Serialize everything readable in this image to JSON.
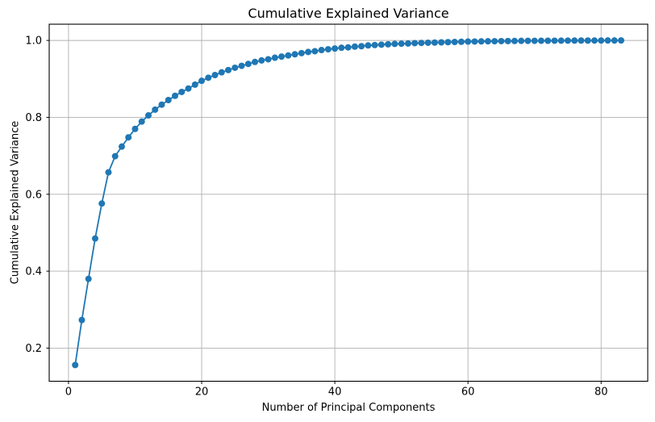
{
  "chart_data": {
    "type": "line",
    "title": "Cumulative Explained Variance",
    "xlabel": "Number of Principal Components",
    "ylabel": "Cumulative Explained Variance",
    "legend": "none",
    "grid": true,
    "line_color": "#1f77b4",
    "marker": "o",
    "marker_color": "#1f77b4",
    "grid_color": "#b0b0b0",
    "spine_color": "#000000",
    "background": "#ffffff",
    "xticks": [
      0,
      20,
      40,
      60,
      80
    ],
    "yticks": [
      0.2,
      0.4,
      0.6,
      0.8,
      1.0
    ],
    "xlim": [
      -2.9,
      87.0
    ],
    "ylim": [
      0.1138,
      1.0422
    ],
    "x": [
      1,
      2,
      3,
      4,
      5,
      6,
      7,
      8,
      9,
      10,
      11,
      12,
      13,
      14,
      15,
      16,
      17,
      18,
      19,
      20,
      21,
      22,
      23,
      24,
      25,
      26,
      27,
      28,
      29,
      30,
      31,
      32,
      33,
      34,
      35,
      36,
      37,
      38,
      39,
      40,
      41,
      42,
      43,
      44,
      45,
      46,
      47,
      48,
      49,
      50,
      51,
      52,
      53,
      54,
      55,
      56,
      57,
      58,
      59,
      60,
      61,
      62,
      63,
      64,
      65,
      66,
      67,
      68,
      69,
      70,
      71,
      72,
      73,
      74,
      75,
      76,
      77,
      78,
      79,
      80,
      81,
      82,
      83
    ],
    "values": [
      0.156,
      0.273,
      0.38,
      0.485,
      0.576,
      0.657,
      0.699,
      0.724,
      0.748,
      0.77,
      0.789,
      0.805,
      0.82,
      0.833,
      0.845,
      0.856,
      0.866,
      0.875,
      0.885,
      0.895,
      0.903,
      0.91,
      0.917,
      0.923,
      0.929,
      0.934,
      0.939,
      0.944,
      0.948,
      0.951,
      0.955,
      0.958,
      0.961,
      0.964,
      0.967,
      0.97,
      0.972,
      0.975,
      0.977,
      0.979,
      0.981,
      0.982,
      0.984,
      0.985,
      0.987,
      0.988,
      0.989,
      0.99,
      0.991,
      0.9915,
      0.992,
      0.993,
      0.9935,
      0.994,
      0.9945,
      0.995,
      0.9955,
      0.996,
      0.9965,
      0.997,
      0.9972,
      0.9975,
      0.9978,
      0.998,
      0.9982,
      0.9984,
      0.9986,
      0.9988,
      0.9989,
      0.999,
      0.9991,
      0.9992,
      0.9993,
      0.9994,
      0.9995,
      0.9996,
      0.9997,
      0.9997,
      0.9998,
      0.9998,
      0.9999,
      0.9999,
      1.0
    ]
  }
}
